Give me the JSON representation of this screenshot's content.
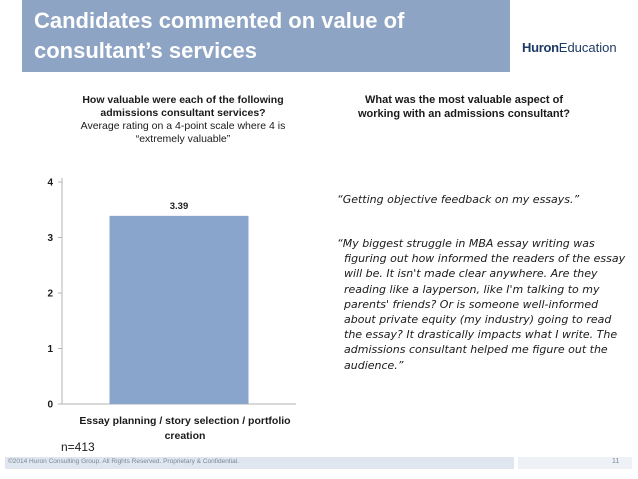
{
  "slide": {
    "title": "Candidates commented on value of consultant’s services",
    "logo_huron": "Huron",
    "logo_education": "Education"
  },
  "chart_head": {
    "question": "How valuable were each of the following admissions consultant services?",
    "subtitle": "Average rating on a 4-point scale where 4 is “extremely valuable”"
  },
  "right_head": {
    "question": "What was the most valuable aspect of working with an admissions consultant?"
  },
  "quotes": [
    "“Getting objective feedback on my essays.”",
    "“My biggest struggle in MBA essay writing was figuring out how informed the readers of the essay will be. It isn't made clear anywhere. Are they reading like a layperson, like I'm talking to my parents' friends? Or is someone well-informed about private equity (my industry) going to read the essay? It drastically impacts what I write. The admissions consultant helped me figure out the audience.”"
  ],
  "sample_size": "n=413",
  "footer": {
    "copyright": "©2014 Huron Consulting Group. All Rights Reserved. Proprietary & Confidential.",
    "page_number": "11"
  },
  "chart_data": {
    "type": "bar",
    "categories": [
      "Essay planning / story selection / portfolio creation"
    ],
    "values": [
      3.39
    ],
    "value_labels": [
      "3.39"
    ],
    "yticks": [
      0,
      1,
      2,
      3,
      4
    ],
    "ylim": [
      0,
      4
    ],
    "grid": false,
    "legend": "none",
    "bar_color": "#8aa5cb"
  }
}
